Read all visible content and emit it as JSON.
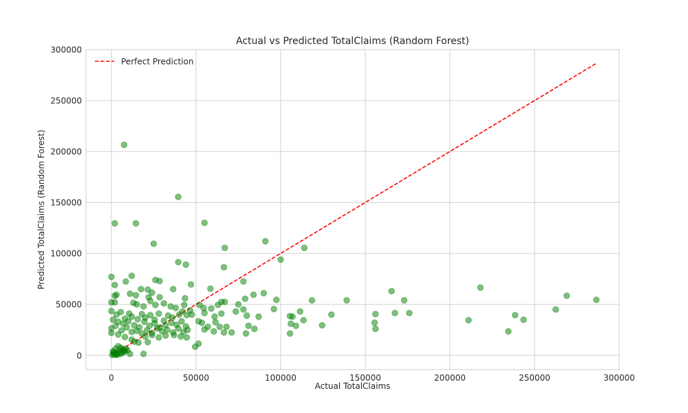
{
  "chart_data": {
    "type": "scatter",
    "title": "Actual vs Predicted TotalClaims (Random Forest)",
    "xlabel": "Actual TotalClaims",
    "ylabel": "Predicted TotalClaims (Random Forest)",
    "xlim": [
      -15000,
      300000
    ],
    "ylim": [
      -14000,
      300000
    ],
    "xticks": [
      0,
      50000,
      100000,
      150000,
      200000,
      250000,
      300000
    ],
    "yticks": [
      0,
      50000,
      100000,
      150000,
      200000,
      250000,
      300000
    ],
    "grid": true,
    "legend_position": "upper-left",
    "series": [
      {
        "kind": "line",
        "name": "Perfect Prediction",
        "color": "#ff0000",
        "dash": "dashed",
        "points": [
          [
            0,
            0
          ],
          [
            286000,
            286000
          ]
        ]
      },
      {
        "kind": "scatter",
        "color": "#008000",
        "opacity": 0.5,
        "points": [
          [
            7500,
            206500
          ],
          [
            39500,
            155500
          ],
          [
            2000,
            129500
          ],
          [
            14500,
            129500
          ],
          [
            55000,
            130000
          ],
          [
            25000,
            109500
          ],
          [
            67000,
            105500
          ],
          [
            91000,
            112000
          ],
          [
            114000,
            105500
          ],
          [
            100000,
            94000
          ],
          [
            39500,
            91500
          ],
          [
            44000,
            89000
          ],
          [
            66500,
            86500
          ],
          [
            0,
            77000
          ],
          [
            12000,
            78000
          ],
          [
            8500,
            72500
          ],
          [
            26000,
            74000
          ],
          [
            28500,
            73000
          ],
          [
            78000,
            72500
          ],
          [
            2000,
            69000
          ],
          [
            47000,
            69500
          ],
          [
            58500,
            65500
          ],
          [
            218000,
            66500
          ],
          [
            17500,
            65000
          ],
          [
            21500,
            64500
          ],
          [
            24000,
            61500
          ],
          [
            36500,
            65000
          ],
          [
            11000,
            60500
          ],
          [
            165500,
            63000
          ],
          [
            269000,
            58500
          ],
          [
            2000,
            58500
          ],
          [
            3000,
            59500
          ],
          [
            14500,
            59000
          ],
          [
            22000,
            57000
          ],
          [
            28500,
            57000
          ],
          [
            43500,
            56000
          ],
          [
            79000,
            55500
          ],
          [
            84000,
            59500
          ],
          [
            90000,
            61000
          ],
          [
            97500,
            54500
          ],
          [
            118500,
            54000
          ],
          [
            139000,
            54000
          ],
          [
            173000,
            54000
          ],
          [
            286500,
            54500
          ],
          [
            0,
            52000
          ],
          [
            2000,
            52000
          ],
          [
            13000,
            51500
          ],
          [
            15000,
            50000
          ],
          [
            19000,
            48000
          ],
          [
            23000,
            53500
          ],
          [
            26000,
            49500
          ],
          [
            31000,
            51000
          ],
          [
            35000,
            48000
          ],
          [
            38000,
            46500
          ],
          [
            43000,
            49500
          ],
          [
            46500,
            44000
          ],
          [
            52000,
            49500
          ],
          [
            54500,
            46500
          ],
          [
            59000,
            46000
          ],
          [
            63000,
            49500
          ],
          [
            65000,
            52500
          ],
          [
            67000,
            52500
          ],
          [
            75000,
            50000
          ],
          [
            78000,
            45000
          ],
          [
            96000,
            45500
          ],
          [
            111500,
            43000
          ],
          [
            130000,
            40000
          ],
          [
            156000,
            40500
          ],
          [
            167500,
            41500
          ],
          [
            176000,
            41500
          ],
          [
            262500,
            45000
          ],
          [
            0,
            43500
          ],
          [
            3000,
            40000
          ],
          [
            5500,
            42500
          ],
          [
            8000,
            36000
          ],
          [
            10500,
            41000
          ],
          [
            12000,
            38000
          ],
          [
            15500,
            35500
          ],
          [
            18000,
            40500
          ],
          [
            20000,
            37000
          ],
          [
            23000,
            39500
          ],
          [
            25500,
            35000
          ],
          [
            28000,
            41000
          ],
          [
            31000,
            34000
          ],
          [
            33500,
            39000
          ],
          [
            36000,
            37000
          ],
          [
            40000,
            40000
          ],
          [
            42000,
            43000
          ],
          [
            44500,
            39500
          ],
          [
            47500,
            40000
          ],
          [
            55000,
            41500
          ],
          [
            61000,
            38000
          ],
          [
            65000,
            41000
          ],
          [
            73500,
            43000
          ],
          [
            80000,
            39000
          ],
          [
            87000,
            38000
          ],
          [
            105500,
            38500
          ],
          [
            107000,
            38000
          ],
          [
            124500,
            29500
          ],
          [
            155500,
            32000
          ],
          [
            238500,
            39500
          ],
          [
            243500,
            35000
          ],
          [
            211000,
            34500
          ],
          [
            1000,
            35000
          ],
          [
            4000,
            33000
          ],
          [
            7000,
            31000
          ],
          [
            10000,
            33500
          ],
          [
            13500,
            29500
          ],
          [
            16500,
            27500
          ],
          [
            19500,
            33000
          ],
          [
            22500,
            29000
          ],
          [
            25500,
            31500
          ],
          [
            28500,
            27500
          ],
          [
            32000,
            29500
          ],
          [
            35500,
            32000
          ],
          [
            38500,
            30000
          ],
          [
            41500,
            33500
          ],
          [
            44000,
            28500
          ],
          [
            51500,
            33500
          ],
          [
            53500,
            32000
          ],
          [
            57000,
            28000
          ],
          [
            61500,
            32500
          ],
          [
            64000,
            28000
          ],
          [
            68000,
            28000
          ],
          [
            81000,
            29000
          ],
          [
            84500,
            26000
          ],
          [
            106000,
            31000
          ],
          [
            113500,
            34500
          ],
          [
            109000,
            29000
          ],
          [
            0,
            26500
          ],
          [
            2500,
            29000
          ],
          [
            6000,
            24500
          ],
          [
            9000,
            27500
          ],
          [
            12000,
            23000
          ],
          [
            15000,
            24000
          ],
          [
            18000,
            21500
          ],
          [
            21000,
            24500
          ],
          [
            24000,
            22000
          ],
          [
            27000,
            26500
          ],
          [
            30000,
            23500
          ],
          [
            33000,
            25000
          ],
          [
            36500,
            22500
          ],
          [
            39500,
            26500
          ],
          [
            42500,
            23000
          ],
          [
            45000,
            25000
          ],
          [
            55000,
            25500
          ],
          [
            60500,
            23500
          ],
          [
            66500,
            22500
          ],
          [
            71000,
            22500
          ],
          [
            79500,
            21500
          ],
          [
            105500,
            21500
          ],
          [
            156000,
            26000
          ],
          [
            234500,
            23500
          ],
          [
            0,
            22000
          ],
          [
            4000,
            20500
          ],
          [
            8000,
            18000
          ],
          [
            12000,
            15500
          ],
          [
            16000,
            12500
          ],
          [
            20000,
            18500
          ],
          [
            24000,
            20000
          ],
          [
            28000,
            17500
          ],
          [
            32000,
            19500
          ],
          [
            37000,
            20000
          ],
          [
            41000,
            18500
          ],
          [
            44500,
            17500
          ],
          [
            51500,
            11500
          ],
          [
            13500,
            13500
          ],
          [
            21500,
            13000
          ],
          [
            49500,
            8500
          ],
          [
            11000,
            1500
          ],
          [
            19000,
            1500
          ],
          [
            1000,
            4000
          ],
          [
            2500,
            6500
          ],
          [
            4000,
            9000
          ],
          [
            5500,
            7500
          ],
          [
            7000,
            5000
          ],
          [
            8500,
            6500
          ],
          [
            500,
            500
          ],
          [
            1500,
            1500
          ],
          [
            2500,
            2500
          ],
          [
            3500,
            1000
          ],
          [
            4500,
            3500
          ],
          [
            6000,
            2000
          ],
          [
            8000,
            4000
          ],
          [
            1200,
            3000
          ],
          [
            3000,
            500
          ],
          [
            5000,
            1500
          ],
          [
            6500,
            6000
          ],
          [
            9500,
            5000
          ],
          [
            2000,
            1000
          ],
          [
            7200,
            3200
          ]
        ]
      }
    ]
  }
}
